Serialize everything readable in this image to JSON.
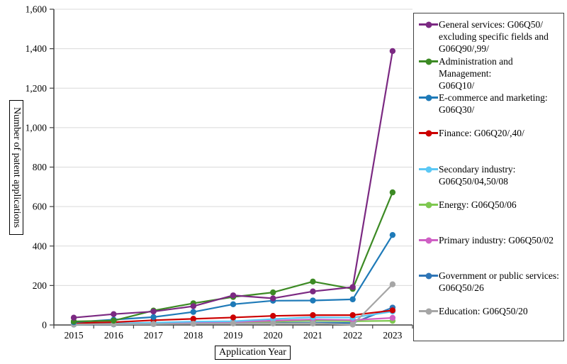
{
  "chart_data": {
    "type": "line",
    "title": "",
    "xlabel": "Application Year",
    "ylabel": "Number of patent applications",
    "x": [
      "2015",
      "2016",
      "2017",
      "2018",
      "2019",
      "2020",
      "2021",
      "2022",
      "2023"
    ],
    "ylim": [
      0,
      1600
    ],
    "ytick_step": 200,
    "y_tick_labels": [
      "0",
      "200",
      "400",
      "600",
      "800",
      "1,000",
      "1,200",
      "1,400",
      "1,600"
    ],
    "grid": "horizontal",
    "legend_position": "right",
    "series": [
      {
        "name": "General services: G06Q50/ excluding specific fields and G06Q90/,99/",
        "lines": [
          "General services: G06Q50/",
          "excluding specific fields and",
          "G06Q90/,99/"
        ],
        "color": "#7B2982",
        "values": [
          37,
          55,
          68,
          95,
          150,
          135,
          170,
          192,
          1388
        ]
      },
      {
        "name": "Administration and Management: G06Q10/",
        "lines": [
          "Administration and Management:",
          "G06Q10/"
        ],
        "color": "#3C8A24",
        "values": [
          18,
          22,
          73,
          110,
          142,
          165,
          220,
          183,
          672
        ]
      },
      {
        "name": "E-commerce and marketing: G06Q30/",
        "lines": [
          "E-commerce and marketing:",
          "G06Q30/"
        ],
        "color": "#1E7AB8",
        "values": [
          14,
          27,
          40,
          66,
          105,
          123,
          124,
          130,
          456
        ]
      },
      {
        "name": "Finance: G06Q20/,40/",
        "lines": [
          "Finance: G06Q20/,40/"
        ],
        "color": "#CC0000",
        "values": [
          10,
          14,
          24,
          31,
          38,
          46,
          50,
          50,
          74
        ]
      },
      {
        "name": "Secondary industry: G06Q50/04,50/08",
        "lines": [
          "Secondary industry:",
          "G06Q50/04,50/08"
        ],
        "color": "#5BC8F5",
        "values": [
          5,
          8,
          12,
          17,
          19,
          30,
          39,
          37,
          68
        ]
      },
      {
        "name": "Energy: G06Q50/06",
        "lines": [
          "Energy: G06Q50/06"
        ],
        "color": "#7EC850",
        "values": [
          3,
          5,
          8,
          11,
          13,
          17,
          22,
          19,
          21
        ]
      },
      {
        "name": "Primary industry: G06Q50/02",
        "lines": [
          "Primary industry: G06Q50/02"
        ],
        "color": "#CF5FC4",
        "values": [
          4,
          6,
          9,
          13,
          15,
          22,
          28,
          25,
          36
        ]
      },
      {
        "name": "Government or public services: G06Q50/26",
        "lines": [
          "Government or public services:",
          "G06Q50/26"
        ],
        "color": "#2E75B6",
        "values": [
          2,
          3,
          5,
          7,
          9,
          10,
          12,
          10,
          88
        ]
      },
      {
        "name": "Education: G06Q50/20",
        "lines": [
          "Education: G06Q50/20"
        ],
        "color": "#A6A6A6",
        "values": [
          3,
          4,
          5,
          6,
          8,
          8,
          8,
          2,
          206
        ]
      }
    ]
  }
}
